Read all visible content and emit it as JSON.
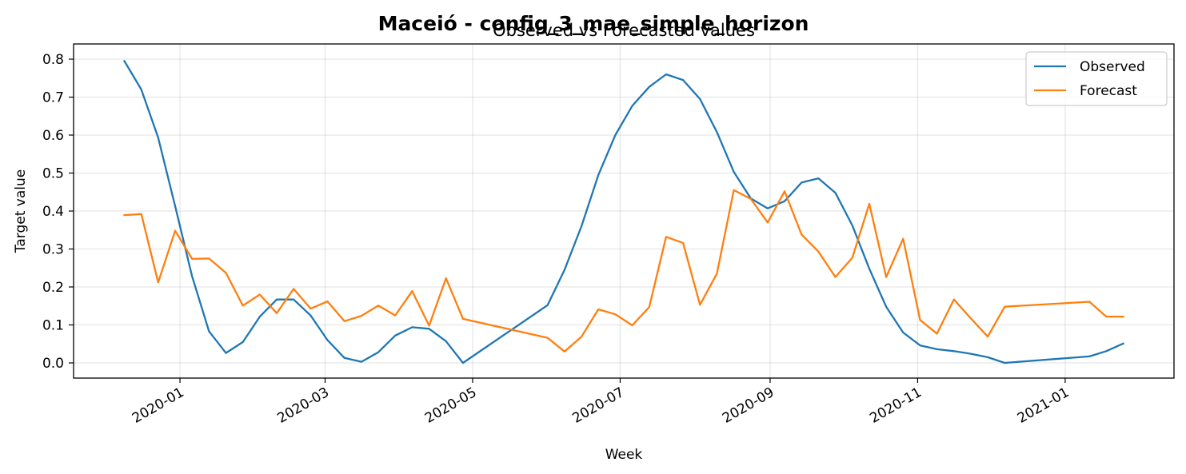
{
  "chart_data": {
    "type": "line",
    "suptitle": "Maceió - config_3_mae_simple_horizon",
    "title": "Observed vs Forecasted values",
    "xlabel": "Week",
    "ylabel": "Target value",
    "x_axis_type": "date",
    "xlim": [
      "2019-11-18",
      "2021-02-15"
    ],
    "ylim": [
      -0.04,
      0.84
    ],
    "x_ticks": [
      "2020-01-01",
      "2020-03-01",
      "2020-05-01",
      "2020-07-01",
      "2020-09-01",
      "2020-11-01",
      "2021-01-01"
    ],
    "x_tick_labels": [
      "2020-01",
      "2020-03",
      "2020-05",
      "2020-07",
      "2020-09",
      "2020-11",
      "2021-01"
    ],
    "y_ticks": [
      0.0,
      0.1,
      0.2,
      0.3,
      0.4,
      0.5,
      0.6,
      0.7,
      0.8
    ],
    "y_tick_labels": [
      "0.0",
      "0.1",
      "0.2",
      "0.3",
      "0.4",
      "0.5",
      "0.6",
      "0.7",
      "0.8"
    ],
    "grid": true,
    "legend_position": "top-right",
    "series": [
      {
        "name": "Observed",
        "color": "#1f77b4",
        "points": [
          [
            "2019-12-09",
            0.795
          ],
          [
            "2019-12-16",
            0.72
          ],
          [
            "2019-12-23",
            0.593
          ],
          [
            "2019-12-30",
            0.413
          ],
          [
            "2020-01-06",
            0.228
          ],
          [
            "2020-01-13",
            0.083
          ],
          [
            "2020-01-20",
            0.026
          ],
          [
            "2020-01-27",
            0.055
          ],
          [
            "2020-02-03",
            0.122
          ],
          [
            "2020-02-10",
            0.167
          ],
          [
            "2020-02-17",
            0.167
          ],
          [
            "2020-02-24",
            0.125
          ],
          [
            "2020-03-02",
            0.06
          ],
          [
            "2020-03-09",
            0.013
          ],
          [
            "2020-03-16",
            0.003
          ],
          [
            "2020-03-23",
            0.028
          ],
          [
            "2020-03-30",
            0.072
          ],
          [
            "2020-04-06",
            0.094
          ],
          [
            "2020-04-13",
            0.09
          ],
          [
            "2020-04-20",
            0.057
          ],
          [
            "2020-04-27",
            0.0
          ],
          [
            "2020-06-01",
            0.152
          ],
          [
            "2020-06-08",
            0.245
          ],
          [
            "2020-06-15",
            0.36
          ],
          [
            "2020-06-22",
            0.495
          ],
          [
            "2020-06-29",
            0.6
          ],
          [
            "2020-07-06",
            0.677
          ],
          [
            "2020-07-13",
            0.727
          ],
          [
            "2020-07-20",
            0.76
          ],
          [
            "2020-07-27",
            0.745
          ],
          [
            "2020-08-03",
            0.695
          ],
          [
            "2020-08-10",
            0.608
          ],
          [
            "2020-08-17",
            0.503
          ],
          [
            "2020-08-24",
            0.433
          ],
          [
            "2020-08-31",
            0.407
          ],
          [
            "2020-09-07",
            0.426
          ],
          [
            "2020-09-14",
            0.475
          ],
          [
            "2020-09-21",
            0.486
          ],
          [
            "2020-09-28",
            0.448
          ],
          [
            "2020-10-05",
            0.362
          ],
          [
            "2020-10-12",
            0.248
          ],
          [
            "2020-10-19",
            0.148
          ],
          [
            "2020-10-26",
            0.08
          ],
          [
            "2020-11-02",
            0.046
          ],
          [
            "2020-11-09",
            0.036
          ],
          [
            "2020-11-16",
            0.031
          ],
          [
            "2020-11-23",
            0.024
          ],
          [
            "2020-11-30",
            0.015
          ],
          [
            "2020-12-07",
            0.0
          ],
          [
            "2021-01-11",
            0.017
          ],
          [
            "2021-01-18",
            0.031
          ],
          [
            "2021-01-25",
            0.051
          ]
        ]
      },
      {
        "name": "Forecast",
        "color": "#ff7f0e",
        "points": [
          [
            "2019-12-09",
            0.389
          ],
          [
            "2019-12-16",
            0.392
          ],
          [
            "2019-12-23",
            0.212
          ],
          [
            "2019-12-30",
            0.348
          ],
          [
            "2020-01-06",
            0.274
          ],
          [
            "2020-01-13",
            0.275
          ],
          [
            "2020-01-20",
            0.237
          ],
          [
            "2020-01-27",
            0.151
          ],
          [
            "2020-02-03",
            0.18
          ],
          [
            "2020-02-10",
            0.131
          ],
          [
            "2020-02-17",
            0.195
          ],
          [
            "2020-02-24",
            0.143
          ],
          [
            "2020-03-02",
            0.162
          ],
          [
            "2020-03-09",
            0.11
          ],
          [
            "2020-03-16",
            0.124
          ],
          [
            "2020-03-23",
            0.151
          ],
          [
            "2020-03-30",
            0.125
          ],
          [
            "2020-04-06",
            0.189
          ],
          [
            "2020-04-13",
            0.098
          ],
          [
            "2020-04-20",
            0.223
          ],
          [
            "2020-04-27",
            0.116
          ],
          [
            "2020-06-01",
            0.066
          ],
          [
            "2020-06-08",
            0.03
          ],
          [
            "2020-06-15",
            0.069
          ],
          [
            "2020-06-22",
            0.141
          ],
          [
            "2020-06-29",
            0.128
          ],
          [
            "2020-07-06",
            0.099
          ],
          [
            "2020-07-13",
            0.147
          ],
          [
            "2020-07-20",
            0.332
          ],
          [
            "2020-07-27",
            0.316
          ],
          [
            "2020-08-03",
            0.153
          ],
          [
            "2020-08-10",
            0.235
          ],
          [
            "2020-08-17",
            0.455
          ],
          [
            "2020-08-24",
            0.432
          ],
          [
            "2020-08-31",
            0.37
          ],
          [
            "2020-09-07",
            0.452
          ],
          [
            "2020-09-14",
            0.338
          ],
          [
            "2020-09-21",
            0.293
          ],
          [
            "2020-09-28",
            0.226
          ],
          [
            "2020-10-05",
            0.277
          ],
          [
            "2020-10-12",
            0.419
          ],
          [
            "2020-10-19",
            0.226
          ],
          [
            "2020-10-26",
            0.327
          ],
          [
            "2020-11-02",
            0.113
          ],
          [
            "2020-11-09",
            0.077
          ],
          [
            "2020-11-16",
            0.167
          ],
          [
            "2020-11-23",
            0.117
          ],
          [
            "2020-11-30",
            0.069
          ],
          [
            "2020-12-07",
            0.148
          ],
          [
            "2021-01-11",
            0.161
          ],
          [
            "2021-01-18",
            0.122
          ],
          [
            "2021-01-25",
            0.122
          ]
        ]
      }
    ]
  }
}
